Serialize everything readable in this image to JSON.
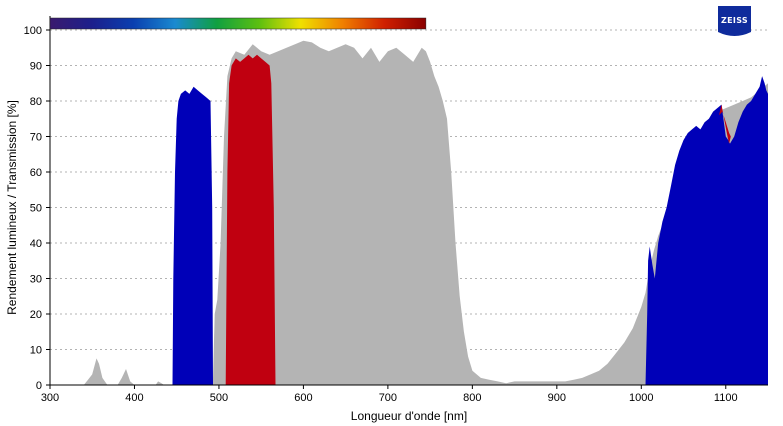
{
  "logo": {
    "text": "ZEISS",
    "color": "#0f2b9c"
  },
  "chart_data": {
    "type": "area",
    "title": "",
    "xlabel": "Longueur d'onde [nm]",
    "ylabel": "Rendement lumineux / Transmission [%]",
    "xlim": [
      300,
      1150
    ],
    "ylim": [
      0,
      100
    ],
    "xticks": [
      300,
      400,
      500,
      600,
      700,
      800,
      900,
      1000,
      1100
    ],
    "yticks": [
      0,
      10,
      20,
      30,
      40,
      50,
      60,
      70,
      80,
      90,
      100
    ],
    "grid": "horizontal-dotted",
    "spectrum_bar": {
      "x_range": [
        300,
        745
      ],
      "colors": [
        "#3a1a6e",
        "#1c1f8c",
        "#0a3fb0",
        "#1a8ad0",
        "#10a040",
        "#5cbf10",
        "#f0e000",
        "#f08000",
        "#d02000",
        "#8a0000"
      ]
    },
    "series": [
      {
        "color": "#b4b4b4",
        "points": [
          [
            340,
            0
          ],
          [
            345,
            1.5
          ],
          [
            350,
            3
          ],
          [
            355,
            7.5
          ],
          [
            358,
            6
          ],
          [
            362,
            2
          ],
          [
            368,
            0
          ],
          [
            380,
            0
          ],
          [
            385,
            2
          ],
          [
            390,
            4.5
          ],
          [
            395,
            1
          ],
          [
            400,
            0
          ],
          [
            425,
            0
          ],
          [
            428,
            1
          ],
          [
            432,
            0.5
          ],
          [
            435,
            0
          ],
          [
            490,
            0
          ],
          [
            493,
            2
          ],
          [
            495,
            20
          ],
          [
            498,
            24
          ],
          [
            502,
            40
          ],
          [
            506,
            70
          ],
          [
            510,
            87
          ],
          [
            515,
            92
          ],
          [
            520,
            94
          ],
          [
            530,
            93
          ],
          [
            540,
            96
          ],
          [
            550,
            94
          ],
          [
            560,
            93
          ],
          [
            570,
            94
          ],
          [
            580,
            95
          ],
          [
            590,
            96
          ],
          [
            600,
            97
          ],
          [
            610,
            96.5
          ],
          [
            620,
            95
          ],
          [
            630,
            94
          ],
          [
            640,
            95
          ],
          [
            650,
            96
          ],
          [
            660,
            95
          ],
          [
            670,
            92
          ],
          [
            680,
            95
          ],
          [
            690,
            91
          ],
          [
            700,
            94
          ],
          [
            710,
            95
          ],
          [
            720,
            93
          ],
          [
            730,
            91
          ],
          [
            740,
            95
          ],
          [
            745,
            94
          ],
          [
            750,
            91
          ],
          [
            755,
            87
          ],
          [
            760,
            84
          ],
          [
            765,
            80
          ],
          [
            770,
            75
          ],
          [
            775,
            60
          ],
          [
            780,
            40
          ],
          [
            785,
            25
          ],
          [
            790,
            15
          ],
          [
            795,
            8
          ],
          [
            800,
            4
          ],
          [
            810,
            2
          ],
          [
            820,
            1.5
          ],
          [
            830,
            1
          ],
          [
            840,
            0.5
          ],
          [
            850,
            1
          ],
          [
            900,
            1
          ],
          [
            910,
            1
          ],
          [
            920,
            1.5
          ],
          [
            930,
            2
          ],
          [
            940,
            3
          ],
          [
            950,
            4
          ],
          [
            960,
            6
          ],
          [
            970,
            9
          ],
          [
            980,
            12
          ],
          [
            990,
            16
          ],
          [
            1000,
            22
          ],
          [
            1005,
            26
          ],
          [
            1010,
            33
          ],
          [
            1015,
            38
          ],
          [
            1020,
            42
          ],
          [
            1025,
            45
          ],
          [
            1030,
            48
          ],
          [
            1040,
            52
          ],
          [
            1050,
            60
          ],
          [
            1060,
            68
          ],
          [
            1070,
            72
          ],
          [
            1080,
            75
          ],
          [
            1090,
            77
          ],
          [
            1100,
            78
          ],
          [
            1110,
            79
          ],
          [
            1120,
            80
          ],
          [
            1130,
            81
          ],
          [
            1140,
            83
          ],
          [
            1150,
            85
          ],
          [
            1150,
            0
          ]
        ]
      },
      {
        "color": "#0000b8",
        "points": [
          [
            445,
            0
          ],
          [
            446,
            30
          ],
          [
            448,
            60
          ],
          [
            450,
            75
          ],
          [
            452,
            80
          ],
          [
            455,
            82
          ],
          [
            460,
            83
          ],
          [
            465,
            82
          ],
          [
            470,
            84
          ],
          [
            475,
            83
          ],
          [
            480,
            82
          ],
          [
            485,
            81
          ],
          [
            490,
            80
          ],
          [
            492,
            50
          ],
          [
            493,
            0
          ]
        ]
      },
      {
        "color": "#c00010",
        "points": [
          [
            508,
            0
          ],
          [
            510,
            60
          ],
          [
            512,
            85
          ],
          [
            515,
            90
          ],
          [
            520,
            92
          ],
          [
            525,
            91
          ],
          [
            530,
            92
          ],
          [
            535,
            93
          ],
          [
            540,
            92
          ],
          [
            545,
            93
          ],
          [
            550,
            92
          ],
          [
            555,
            91
          ],
          [
            560,
            90
          ],
          [
            562,
            85
          ],
          [
            565,
            50
          ],
          [
            567,
            0
          ]
        ]
      },
      {
        "color": "#0000b8",
        "points": [
          [
            1005,
            0
          ],
          [
            1007,
            20
          ],
          [
            1008,
            35
          ],
          [
            1010,
            39
          ],
          [
            1013,
            34
          ],
          [
            1016,
            30
          ],
          [
            1020,
            40
          ],
          [
            1025,
            46
          ],
          [
            1030,
            50
          ],
          [
            1035,
            56
          ],
          [
            1040,
            62
          ],
          [
            1045,
            66
          ],
          [
            1050,
            69
          ],
          [
            1055,
            71
          ],
          [
            1060,
            72
          ],
          [
            1065,
            73
          ],
          [
            1070,
            72
          ],
          [
            1075,
            74
          ],
          [
            1080,
            75
          ],
          [
            1085,
            77
          ],
          [
            1090,
            78
          ],
          [
            1095,
            79
          ],
          [
            1100,
            70
          ],
          [
            1103,
            69
          ],
          [
            1105,
            68
          ],
          [
            1110,
            70
          ],
          [
            1115,
            74
          ],
          [
            1120,
            77
          ],
          [
            1125,
            79
          ],
          [
            1130,
            80
          ],
          [
            1135,
            82
          ],
          [
            1140,
            84
          ],
          [
            1143,
            87
          ],
          [
            1146,
            85
          ],
          [
            1148,
            83
          ],
          [
            1150,
            82
          ],
          [
            1150,
            0
          ]
        ]
      },
      {
        "color": "#c00010",
        "points": [
          [
            1092,
            76
          ],
          [
            1095,
            79
          ],
          [
            1098,
            75
          ],
          [
            1102,
            70
          ],
          [
            1104,
            68
          ],
          [
            1106,
            70
          ],
          [
            1104,
            71
          ],
          [
            1100,
            74
          ],
          [
            1096,
            77
          ]
        ]
      }
    ]
  }
}
